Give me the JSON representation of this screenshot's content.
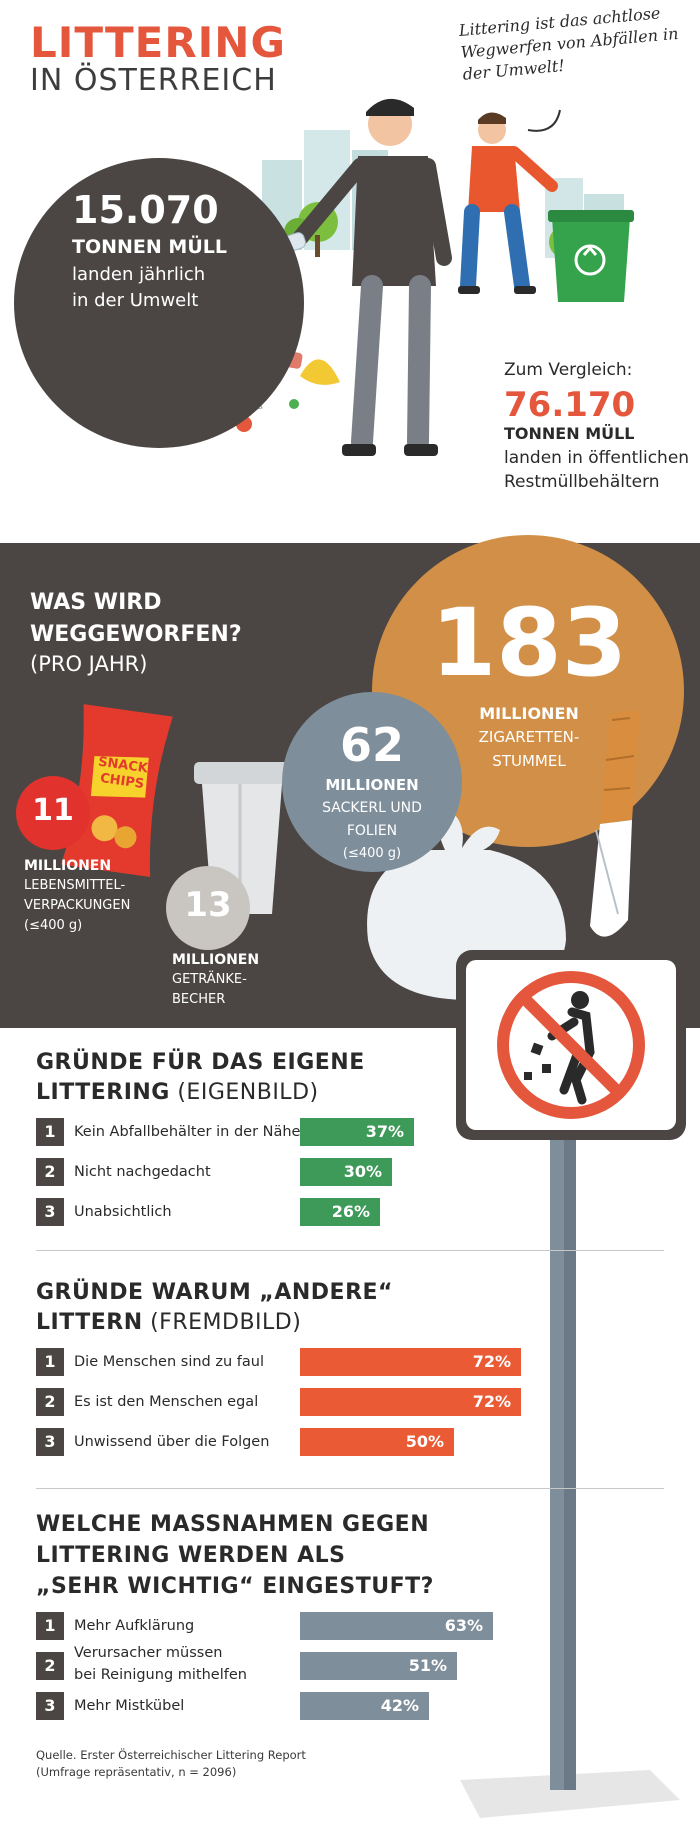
{
  "header": {
    "title": "LITTERING",
    "subtitle": "IN ÖSTERREICH",
    "quote": "Littering ist das achtlose Wegwerfen von Abfällen in der Umwelt!"
  },
  "stat_environment": {
    "value": "15.070",
    "unit": "TONNEN MÜLL",
    "line1": "landen jährlich",
    "line2": "in der Umwelt"
  },
  "comparison": {
    "label": "Zum Vergleich:",
    "value": "76.170",
    "unit": "TONNEN MÜLL",
    "line1": "landen in öffentlichen",
    "line2": "Restmüllbehältern"
  },
  "thrown_away": {
    "title_line1": "WAS WIRD",
    "title_line2": "WEGGEWORFEN?",
    "title_line3": "(PRO JAHR)",
    "items": [
      {
        "value": "183",
        "lines": [
          "MILLIONEN",
          "ZIGARETTEN-",
          "STUMMEL"
        ],
        "color": "#d28f47"
      },
      {
        "value": "62",
        "lines": [
          "MILLIONEN",
          "SACKERL UND",
          "FOLIEN",
          "(≤400 g)"
        ],
        "color": "#7f8e9b"
      },
      {
        "value": "11",
        "lines": [
          "MILLIONEN",
          "LEBENSMITTEL-",
          "VERPACKUNGEN",
          "(≤400 g)"
        ],
        "color": "#e1322d"
      },
      {
        "value": "13",
        "lines": [
          "MILLIONEN",
          "GETRÄNKE-",
          "BECHER"
        ],
        "color": "#c9c5c1"
      }
    ],
    "chips_bag": {
      "line1": "SNACK",
      "line2": "CHIPS"
    }
  },
  "self_reasons": {
    "title_bold1": "GRÜNDE FÜR DAS EIGENE",
    "title_bold2": "LITTERING",
    "title_light": " (EIGENBILD)",
    "color": "#3e9a58",
    "rows": [
      {
        "num": "1",
        "label": "Kein Abfallbehälter in der Nähe",
        "value": 37,
        "display": "37%"
      },
      {
        "num": "2",
        "label": "Nicht nachgedacht",
        "value": 30,
        "display": "30%"
      },
      {
        "num": "3",
        "label": "Unabsichtlich",
        "value": 26,
        "display": "26%"
      }
    ]
  },
  "other_reasons": {
    "title_bold1": "GRÜNDE WARUM „ANDERE“",
    "title_bold2": "LITTERN",
    "title_light": " (FREMDBILD)",
    "color": "#ea5b35",
    "rows": [
      {
        "num": "1",
        "label": "Die Menschen sind zu faul",
        "value": 72,
        "display": "72%"
      },
      {
        "num": "2",
        "label": "Es ist den Menschen egal",
        "value": 72,
        "display": "72%"
      },
      {
        "num": "3",
        "label": "Unwissend über die Folgen",
        "value": 50,
        "display": "50%"
      }
    ]
  },
  "measures": {
    "title_line1": "WELCHE MASSNAHMEN GEGEN",
    "title_line2": "LITTERING WERDEN ALS",
    "title_line3": "„SEHR WICHTIG“ EINGESTUFT?",
    "color": "#7f8e9b",
    "rows": [
      {
        "num": "1",
        "label": "Mehr Aufklärung",
        "value": 63,
        "display": "63%"
      },
      {
        "num": "2",
        "label": "Verursacher müssen",
        "label2": "bei Reinigung mithelfen",
        "value": 51,
        "display": "51%"
      },
      {
        "num": "3",
        "label": "Mehr Mistkübel",
        "value": 42,
        "display": "42%"
      }
    ]
  },
  "source": {
    "line1": "Quelle. Erster Österreichischer Littering Report",
    "line2": "(Umfrage repräsentativ, n = 2096)"
  }
}
